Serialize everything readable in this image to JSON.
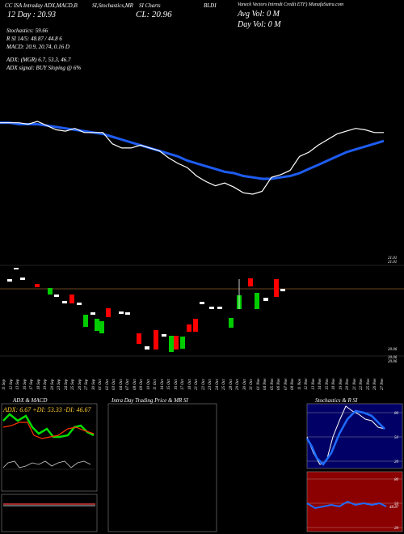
{
  "header": {
    "line1_left": "CC ISA Intraday ADX,MACD,B",
    "line1_mid": "SI,Stochastics,MR",
    "line1_mid2": "SI Charts",
    "line1_ticker": "BLDI",
    "line1_right": "Vaneck Vectors Intrmdt Credit ETF) MunafaSutra.com",
    "day_label": "12 Day : 20.93",
    "close_label": "CL: 20.96",
    "avg_vol": "Avg Vol: 0  M",
    "day_vol": "Day Vol: 0  M",
    "stochastics": "Stochastics: 59.66",
    "rsi": "R                SI 14/5: 48.87 / 44.8                6",
    "macd": "MACD: 20.9, 20.74, 0.16  D",
    "adx": "ADX:                          (MGR) 6.7, 53.3, 46.7",
    "adx_signal": "ADX  signal:                              BUY Sloping @ 6%"
  },
  "price_axis": {
    "top_a": "21.01",
    "top_b": "21.01",
    "low_a": "20.06",
    "low_b": "20.06",
    "low_c": "20.06"
  },
  "dates": [
    "11 Sep",
    "12 Sep",
    "13 Sep",
    "16 Sep",
    "17 Sep",
    "18 Sep",
    "19 Sep",
    "20 Sep",
    "23 Sep",
    "24 Sep",
    "25 Sep",
    "26 Sep",
    "27 Sep",
    "30 Sep",
    "01 Oct",
    "02 Oct",
    "03 Oct",
    "04 Oct",
    "07 Oct",
    "08 Oct",
    "09 Oct",
    "10 Oct",
    "11 Oct",
    "14 Oct",
    "15 Oct",
    "16 Oct",
    "17 Oct",
    "18 Oct",
    "21 Oct",
    "22 Oct",
    "23 Oct",
    "24 Oct",
    "25 Oct",
    "28 Oct",
    "29 Oct",
    "30 Oct",
    "31 Oct",
    "01 Nov",
    "04 Nov",
    "05 Nov",
    "06 Nov",
    "07 Nov",
    "08 Nov",
    "11 Nov",
    "12 Nov",
    "13 Nov",
    "14 Nov",
    "15 Nov",
    "18 Nov",
    "19 Nov",
    "20 Nov",
    "21 Nov",
    "22 Nov",
    "25 Nov",
    "26 Nov",
    "27 Nov"
  ],
  "panels": {
    "adx_title": "ADX  & MACD",
    "adx_values": "ADX: 6.67  +DI: 53.33  -DI: 46.67",
    "intraday_title": "Intra  Day Trading Price  & MR                    SI",
    "stoch_title": "Stochastics & R                    SI",
    "stoch_ticks": [
      "80",
      "50",
      "20"
    ],
    "rsi_ticks": [
      "80",
      "50",
      "20"
    ],
    "rsi_value": "48.87"
  },
  "colors": {
    "price": "#ffffff",
    "ma": "#1e5cf0",
    "up": "#00cc00",
    "down": "#ff0000",
    "stoch_bg": "#000066",
    "rsi_bg": "#8b0000",
    "ref_line": "#8b5a2b"
  },
  "chart_data": {
    "type": "line",
    "title": "",
    "series": [
      {
        "values": [
          20.62,
          20.62,
          20.62,
          20.61,
          20.63,
          20.6,
          20.57,
          20.56,
          20.58,
          20.55,
          20.55,
          20.55,
          20.47,
          20.44,
          20.44,
          20.46,
          20.44,
          20.42,
          20.37,
          20.33,
          20.3,
          20.24,
          20.2,
          20.17,
          20.19,
          20.16,
          20.12,
          20.11,
          20.13,
          20.23,
          20.25,
          20.28,
          20.38,
          20.41,
          20.46,
          20.5,
          20.54,
          20.56,
          20.58,
          20.57,
          20.55,
          20.55
        ]
      },
      {
        "values": [
          20.62,
          20.62,
          20.61,
          20.61,
          20.61,
          20.6,
          20.59,
          20.58,
          20.57,
          20.56,
          20.55,
          20.54,
          20.52,
          20.5,
          20.48,
          20.46,
          20.44,
          20.42,
          20.4,
          20.38,
          20.35,
          20.33,
          20.31,
          20.29,
          20.27,
          20.26,
          20.24,
          20.23,
          20.22,
          20.22,
          20.23,
          20.24,
          20.26,
          20.29,
          20.32,
          20.35,
          20.38,
          20.41,
          20.43,
          20.45,
          20.47,
          20.49
        ]
      }
    ]
  }
}
